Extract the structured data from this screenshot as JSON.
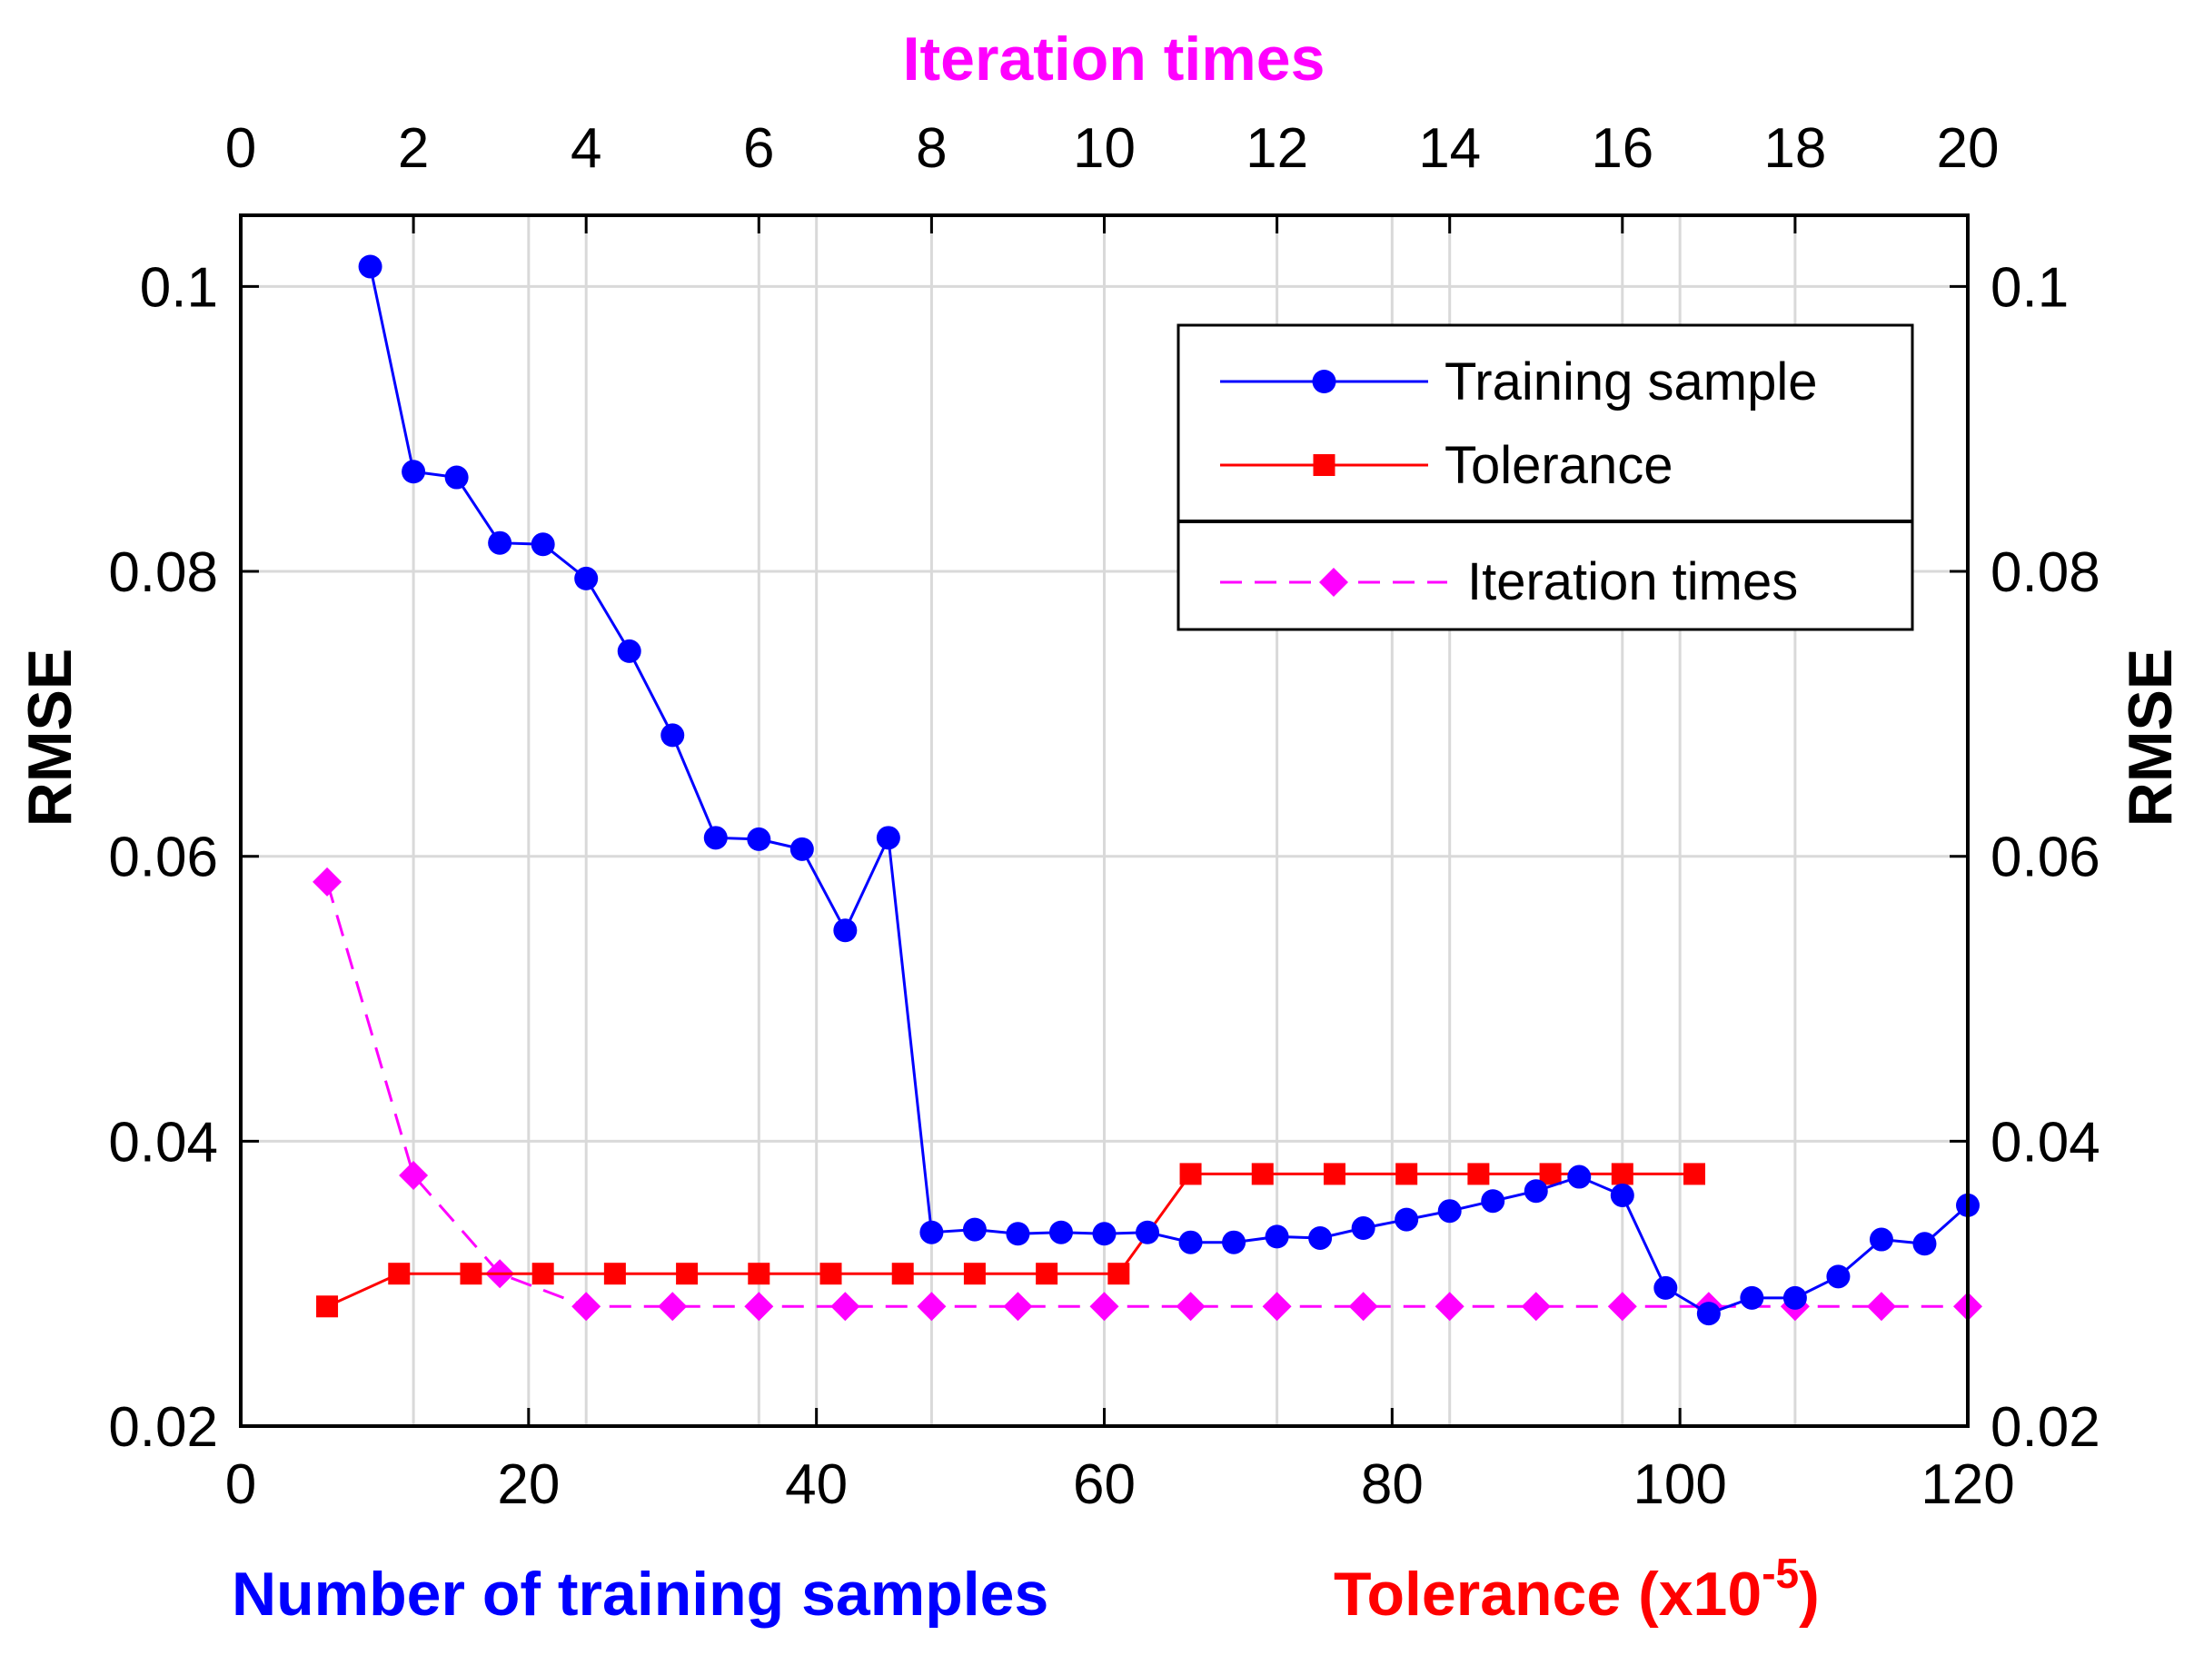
{
  "chart_data": {
    "type": "line",
    "title": "",
    "ylabel_left": "RMSE",
    "ylabel_right": "RMSE",
    "ylim": [
      0.02,
      0.105
    ],
    "yticks": [
      0.02,
      0.04,
      0.06,
      0.08,
      0.1
    ],
    "ytick_labels": [
      "0.02",
      "0.04",
      "0.06",
      "0.08",
      "0.1"
    ],
    "bottom_axis": {
      "range": [
        0,
        120
      ],
      "ticks": [
        0,
        20,
        40,
        60,
        80,
        100,
        120
      ],
      "label_blue": "Number of training samples",
      "label_red": "Tolerance (x10",
      "label_red_exponent": "-5",
      "label_red_close": ")"
    },
    "top_axis": {
      "range": [
        0,
        20
      ],
      "ticks": [
        0,
        2,
        4,
        6,
        8,
        10,
        12,
        14,
        16,
        18,
        20
      ],
      "label": "Iteration times"
    },
    "colors": {
      "training": "#0000ff",
      "tolerance": "#ff0000",
      "iteration": "#ff00ff",
      "top_label": "#ff00ff",
      "bottom_label_blue": "#0000ff",
      "bottom_label_red": "#ff0000"
    },
    "legend_position": "top-right",
    "series": [
      {
        "name": "Training sample",
        "axis": "bottom",
        "marker": "circle",
        "linestyle": "solid",
        "x": [
          9,
          12,
          15,
          18,
          21,
          24,
          27,
          30,
          33,
          36,
          39,
          42,
          45,
          48,
          51,
          54,
          57,
          60,
          63,
          66,
          69,
          72,
          75,
          78,
          81,
          84,
          87,
          90,
          93,
          96,
          99,
          102,
          105,
          108,
          111,
          114,
          117,
          120
        ],
        "y": [
          0.1014,
          0.087,
          0.0866,
          0.082,
          0.0819,
          0.0795,
          0.0744,
          0.0685,
          0.0613,
          0.0612,
          0.0605,
          0.0548,
          0.0613,
          0.0336,
          0.0338,
          0.0335,
          0.0336,
          0.0335,
          0.0336,
          0.0329,
          0.0329,
          0.0333,
          0.0332,
          0.0339,
          0.0345,
          0.0351,
          0.0358,
          0.0365,
          0.0375,
          0.0362,
          0.0297,
          0.0279,
          0.029,
          0.029,
          0.0305,
          0.0331,
          0.0328,
          0.0355
        ]
      },
      {
        "name": "Tolerance",
        "axis": "bottom",
        "marker": "square",
        "linestyle": "solid",
        "x": [
          6,
          11,
          16,
          21,
          26,
          31,
          36,
          41,
          46,
          51,
          56,
          61,
          66,
          71,
          76,
          81,
          86,
          91,
          96,
          101
        ],
        "y": [
          0.0284,
          0.0307,
          0.0307,
          0.0307,
          0.0307,
          0.0307,
          0.0307,
          0.0307,
          0.0307,
          0.0307,
          0.0307,
          0.0307,
          0.0377,
          0.0377,
          0.0377,
          0.0377,
          0.0377,
          0.0377,
          0.0377,
          0.0377
        ]
      },
      {
        "name": "Iteration times",
        "axis": "top",
        "marker": "diamond",
        "linestyle": "dashed",
        "x": [
          1,
          2,
          3,
          4,
          5,
          6,
          7,
          8,
          9,
          10,
          11,
          12,
          13,
          14,
          15,
          16,
          17,
          18,
          19,
          20
        ],
        "y": [
          0.0582,
          0.0376,
          0.0307,
          0.0284,
          0.0284,
          0.0284,
          0.0284,
          0.0284,
          0.0284,
          0.0284,
          0.0284,
          0.0284,
          0.0284,
          0.0284,
          0.0284,
          0.0284,
          0.0284,
          0.0284,
          0.0284,
          0.0284
        ]
      }
    ]
  }
}
